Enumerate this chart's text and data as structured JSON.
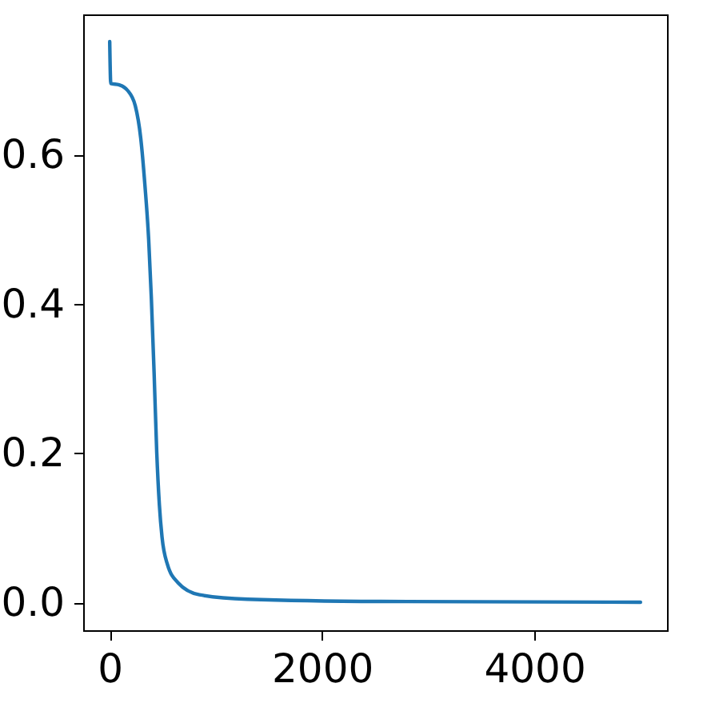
{
  "chart_data": {
    "type": "line",
    "x": [
      0,
      10,
      90,
      166,
      241,
      292,
      332,
      367,
      392,
      418,
      443,
      468,
      493,
      543,
      644,
      845,
      1298,
      2555,
      5000
    ],
    "series": [
      {
        "color": "#1f77b4",
        "values": [
          0.751,
          0.695,
          0.693,
          0.686,
          0.665,
          0.622,
          0.558,
          0.486,
          0.408,
          0.308,
          0.201,
          0.13,
          0.087,
          0.051,
          0.026,
          0.01,
          0.004,
          0.001,
          0.0
        ]
      }
    ],
    "xlim": [
      -250,
      5250
    ],
    "xticks": [
      0,
      2000,
      4000
    ],
    "ylim": [
      -0.0375,
      0.7875
    ],
    "yticks": [
      {
        "value": 0,
        "label": "0.0"
      },
      {
        "value": 0.2,
        "label": "0.2"
      },
      {
        "value": 0.4,
        "label": "0.4"
      },
      {
        "value": 0.6,
        "label": "0.6"
      }
    ],
    "grid": false,
    "marker": "none",
    "line_style": "solid"
  }
}
